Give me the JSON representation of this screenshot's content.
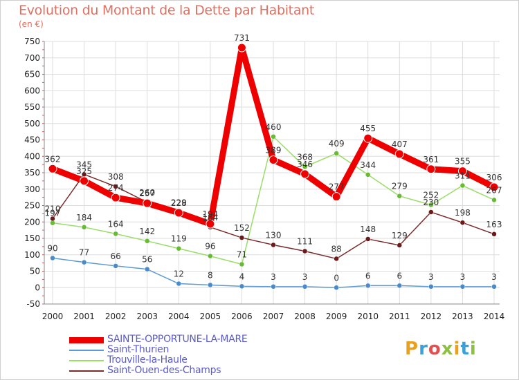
{
  "header": {
    "title": "Evolution du Montant de la Dette par Habitant",
    "unit": "(en €)"
  },
  "logo": {
    "text": "Proxiti",
    "colors": [
      "#e8a020",
      "#3aa0d8",
      "#e05050",
      "#8cc040",
      "#e8a020",
      "#3aa0d8",
      "#8cc040"
    ]
  },
  "chart_data": {
    "type": "line",
    "x": [
      "2000",
      "2001",
      "2002",
      "2003",
      "2004",
      "2005",
      "2006",
      "2007",
      "2008",
      "2009",
      "2010",
      "2011",
      "2012",
      "2013",
      "2014"
    ],
    "ylim": [
      -50,
      750
    ],
    "yticks": [
      -50,
      0,
      50,
      100,
      150,
      200,
      250,
      300,
      350,
      400,
      450,
      500,
      550,
      600,
      650,
      700,
      750
    ],
    "grid": true,
    "legend_position": "bottom-left",
    "series": [
      {
        "name": "SAINTE-OPPORTUNE-LA-MARE",
        "color": "#ee0000",
        "marker_color": "#ee0000",
        "values": [
          362,
          325,
          274,
          257,
          228,
          194,
          731,
          389,
          346,
          277,
          455,
          407,
          361,
          355,
          306
        ],
        "labels": [
          "362",
          "325",
          "274",
          "257",
          "228",
          "194",
          "731",
          "389",
          "346",
          "277",
          "455",
          "407",
          "361",
          "355",
          "306"
        ]
      },
      {
        "name": "Saint-Thurien",
        "color": "#5b9ad5",
        "marker_color": "#4a8ac8",
        "values": [
          90,
          77,
          66,
          56,
          12,
          8,
          4,
          3,
          3,
          0,
          6,
          6,
          3,
          3,
          3
        ],
        "labels": [
          "90",
          "77",
          "66",
          "56",
          "12",
          "8",
          "4",
          "3",
          "3",
          "0",
          "6",
          "6",
          "3",
          "3",
          "3"
        ]
      },
      {
        "name": "Trouville-la-Haule",
        "color": "#99dd66",
        "marker_color": "#66bb33",
        "values": [
          197,
          184,
          164,
          142,
          119,
          96,
          71,
          460,
          368,
          409,
          344,
          279,
          252,
          311,
          267
        ],
        "labels": [
          "197",
          "184",
          "164",
          "142",
          "119",
          "96",
          "71",
          "460",
          "368",
          "409",
          "344",
          "279",
          "252",
          "311",
          "267"
        ]
      },
      {
        "name": "Saint-Ouen-des-Champs",
        "color": "#7a2a2a",
        "marker_color": "#6a1a1a",
        "values": [
          210,
          345,
          308,
          260,
          229,
          184,
          152,
          130,
          111,
          88,
          148,
          129,
          230,
          198,
          163
        ],
        "labels": [
          "210",
          "345",
          "308",
          "260",
          "229",
          "184",
          "152",
          "130",
          "111",
          "88",
          "148",
          "129",
          "230",
          "198",
          "163"
        ]
      }
    ]
  }
}
